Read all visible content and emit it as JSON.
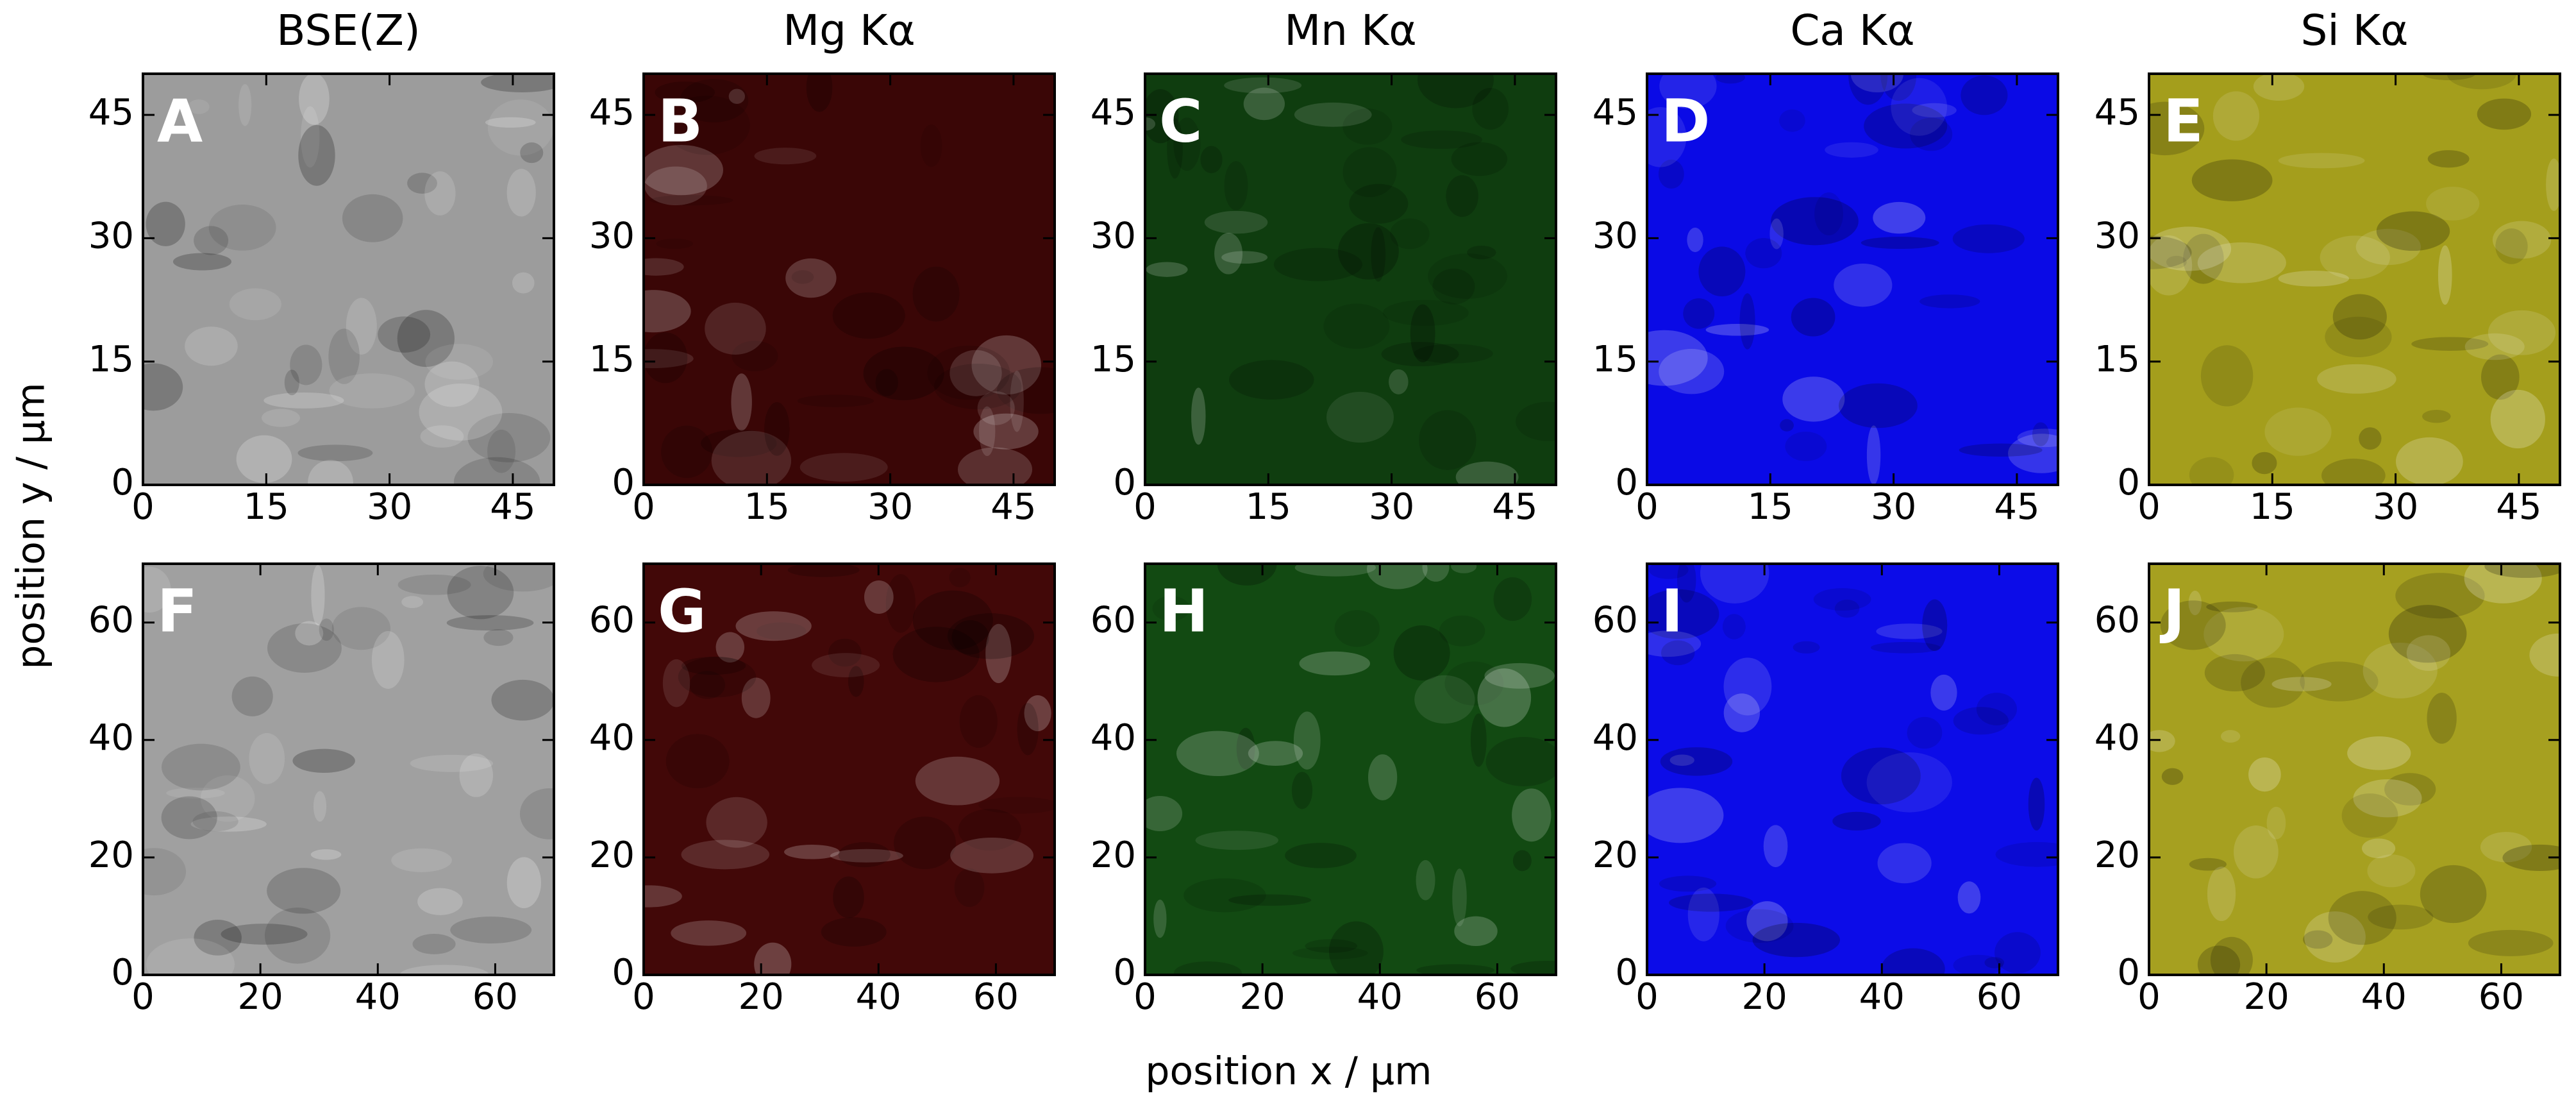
{
  "xlabel": "position x / µm",
  "ylabel": "position y / µm",
  "chart_data": [
    {
      "type": "image",
      "title": "BSE(Z)",
      "label": "A",
      "color": "#9c9c9c",
      "xlim": [
        0,
        50
      ],
      "ylim": [
        0,
        50
      ],
      "xticks": [
        0,
        15,
        30,
        45
      ],
      "yticks": [
        0,
        15,
        30,
        45
      ]
    },
    {
      "type": "image",
      "title": "Mg Kα",
      "label": "B",
      "color": "#3a0606",
      "xlim": [
        0,
        50
      ],
      "ylim": [
        0,
        50
      ],
      "xticks": [
        0,
        15,
        30,
        45
      ],
      "yticks": [
        0,
        15,
        30,
        45
      ]
    },
    {
      "type": "image",
      "title": "Mn Kα",
      "label": "C",
      "color": "#0f3d0f",
      "xlim": [
        0,
        50
      ],
      "ylim": [
        0,
        50
      ],
      "xticks": [
        0,
        15,
        30,
        45
      ],
      "yticks": [
        0,
        15,
        30,
        45
      ]
    },
    {
      "type": "image",
      "title": "Ca Kα",
      "label": "D",
      "color": "#0a0ae6",
      "xlim": [
        0,
        50
      ],
      "ylim": [
        0,
        50
      ],
      "xticks": [
        0,
        15,
        30,
        45
      ],
      "yticks": [
        0,
        15,
        30,
        45
      ]
    },
    {
      "type": "image",
      "title": "Si Kα",
      "label": "E",
      "color": "#a49e1c",
      "xlim": [
        0,
        50
      ],
      "ylim": [
        0,
        50
      ],
      "xticks": [
        0,
        15,
        30,
        45
      ],
      "yticks": [
        0,
        15,
        30,
        45
      ]
    },
    {
      "type": "image",
      "label": "F",
      "color": "#a0a0a0",
      "xlim": [
        0,
        70
      ],
      "ylim": [
        0,
        70
      ],
      "xticks": [
        0,
        20,
        40,
        60
      ],
      "yticks": [
        0,
        20,
        40,
        60
      ]
    },
    {
      "type": "image",
      "label": "G",
      "color": "#420808",
      "xlim": [
        0,
        70
      ],
      "ylim": [
        0,
        70
      ],
      "xticks": [
        0,
        20,
        40,
        60
      ],
      "yticks": [
        0,
        20,
        40,
        60
      ]
    },
    {
      "type": "image",
      "label": "H",
      "color": "#124a12",
      "xlim": [
        0,
        70
      ],
      "ylim": [
        0,
        70
      ],
      "xticks": [
        0,
        20,
        40,
        60
      ],
      "yticks": [
        0,
        20,
        40,
        60
      ]
    },
    {
      "type": "image",
      "label": "I",
      "color": "#0c0ce8",
      "xlim": [
        0,
        70
      ],
      "ylim": [
        0,
        70
      ],
      "xticks": [
        0,
        20,
        40,
        60
      ],
      "yticks": [
        0,
        20,
        40,
        60
      ]
    },
    {
      "type": "image",
      "label": "J",
      "color": "#a6a020",
      "xlim": [
        0,
        70
      ],
      "ylim": [
        0,
        70
      ],
      "xticks": [
        0,
        20,
        40,
        60
      ],
      "yticks": [
        0,
        20,
        40,
        60
      ]
    }
  ]
}
